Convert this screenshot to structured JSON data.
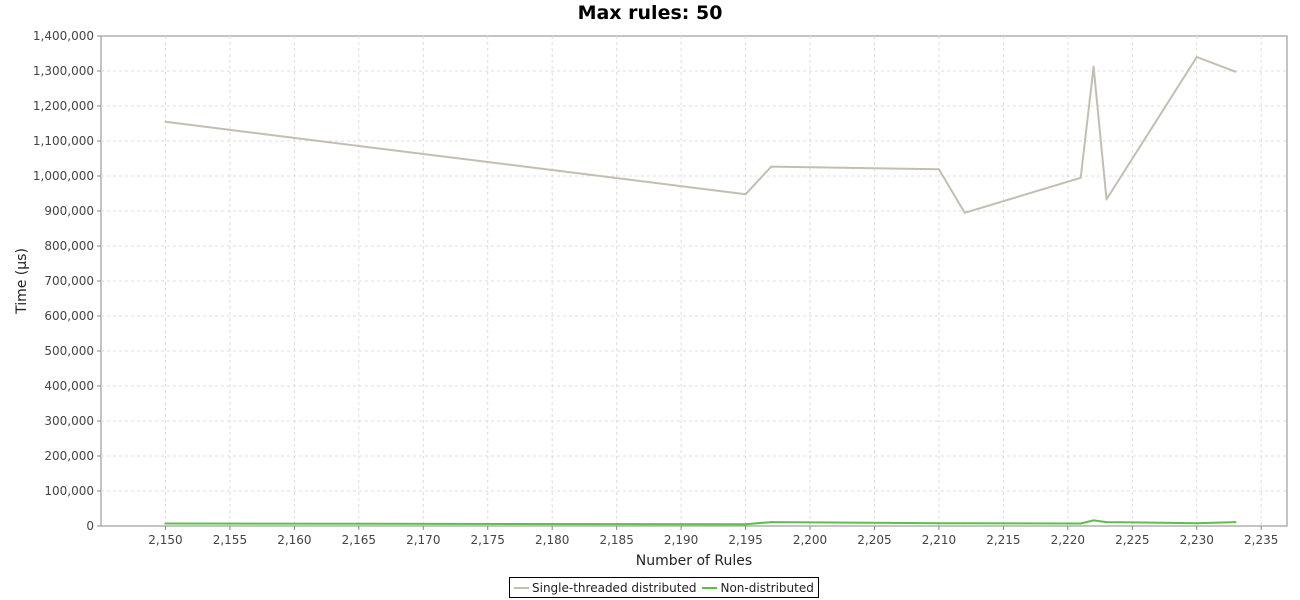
{
  "chart_data": {
    "type": "line",
    "title": "Max rules: 50",
    "xlabel": "Number of Rules",
    "ylabel": "Time (µs)",
    "xlim": [
      2145,
      2237
    ],
    "ylim": [
      0,
      1400000
    ],
    "x_ticks": [
      2150,
      2155,
      2160,
      2165,
      2170,
      2175,
      2180,
      2185,
      2190,
      2195,
      2200,
      2205,
      2210,
      2215,
      2220,
      2225,
      2230,
      2235
    ],
    "x_tick_labels": [
      "2,150",
      "2,155",
      "2,160",
      "2,165",
      "2,170",
      "2,175",
      "2,180",
      "2,185",
      "2,190",
      "2,195",
      "2,200",
      "2,205",
      "2,210",
      "2,215",
      "2,220",
      "2,225",
      "2,230",
      "2,235"
    ],
    "y_ticks": [
      0,
      100000,
      200000,
      300000,
      400000,
      500000,
      600000,
      700000,
      800000,
      900000,
      1000000,
      1100000,
      1200000,
      1300000,
      1400000
    ],
    "y_tick_labels": [
      "0",
      "100,000",
      "200,000",
      "300,000",
      "400,000",
      "500,000",
      "600,000",
      "700,000",
      "800,000",
      "900,000",
      "1,000,000",
      "1,100,000",
      "1,200,000",
      "1,300,000",
      "1,400,000"
    ],
    "grid": true,
    "legend_position": "bottom",
    "series": [
      {
        "name": "Single-threaded distributed",
        "color": "#c4beb1",
        "x": [
          2150,
          2195,
          2197,
          2210,
          2212,
          2221,
          2222,
          2223,
          2230,
          2233
        ],
        "values": [
          1155000,
          948000,
          1027000,
          1019000,
          895000,
          995000,
          1312000,
          933000,
          1340000,
          1298000
        ]
      },
      {
        "name": "Non-distributed",
        "color": "#5bbf4a",
        "x": [
          2150,
          2195,
          2197,
          2210,
          2212,
          2221,
          2222,
          2223,
          2230,
          2233
        ],
        "values": [
          7000,
          5000,
          11000,
          8000,
          8000,
          7000,
          16000,
          11000,
          8000,
          11000
        ]
      }
    ]
  }
}
